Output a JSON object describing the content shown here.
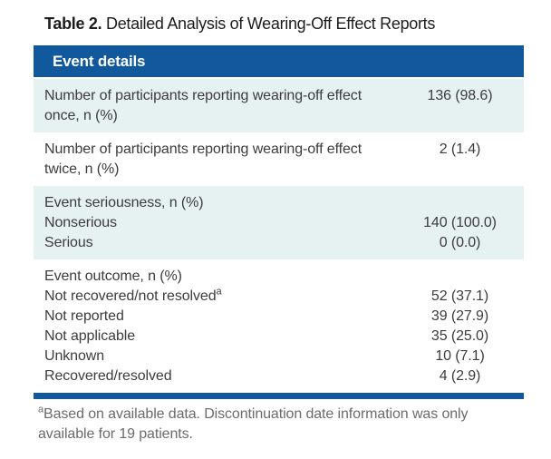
{
  "colors": {
    "header_blue": "#11599c",
    "row_light_bg": "#e5f2f1"
  },
  "title": {
    "label": "Table 2.",
    "text": "Detailed Analysis of Wearing-Off Effect Reports"
  },
  "table": {
    "header": "Event details",
    "sections": [
      {
        "shade": "light",
        "rows": [
          {
            "label_line1": "Number of participants reporting wearing-off effect",
            "label_line2": "once, n (%)",
            "value": "136 (98.6)"
          }
        ]
      },
      {
        "shade": "white",
        "rows": [
          {
            "label_line1": "Number of participants reporting wearing-off effect",
            "label_line2": "twice, n (%)",
            "value": "2 (1.4)"
          }
        ]
      },
      {
        "shade": "light",
        "rows": [
          {
            "label": "Event seriousness, n (%)",
            "value": ""
          },
          {
            "label": "Nonserious",
            "value": "140 (100.0)"
          },
          {
            "label": "Serious",
            "value": "0 (0.0)"
          }
        ]
      },
      {
        "shade": "white",
        "rows": [
          {
            "label": "Event outcome, n (%)",
            "value": ""
          },
          {
            "label": "Not recovered/not resolved",
            "sup": "a",
            "value": "52 (37.1)"
          },
          {
            "label": "Not reported",
            "value": "39 (27.9)"
          },
          {
            "label": "Not applicable",
            "value": "35 (25.0)"
          },
          {
            "label": "Unknown",
            "value": "10 (7.1)"
          },
          {
            "label": "Recovered/resolved",
            "value": "4 (2.9)"
          }
        ]
      }
    ]
  },
  "footnote": {
    "marker": "a",
    "line1": "Based on available data. Discontinuation date information was only",
    "line2": "available for 19 patients."
  },
  "chart_data": {
    "type": "table",
    "title": "Table 2. Detailed Analysis of Wearing-Off Effect Reports",
    "columns": [
      "Event details",
      "n (%)"
    ],
    "rows": [
      [
        "Number of participants reporting wearing-off effect once, n (%)",
        "136 (98.6)"
      ],
      [
        "Number of participants reporting wearing-off effect twice, n (%)",
        "2 (1.4)"
      ],
      [
        "Event seriousness: Nonserious",
        "140 (100.0)"
      ],
      [
        "Event seriousness: Serious",
        "0 (0.0)"
      ],
      [
        "Event outcome: Not recovered/not resolved(a)",
        "52 (37.1)"
      ],
      [
        "Event outcome: Not reported",
        "39 (27.9)"
      ],
      [
        "Event outcome: Not applicable",
        "35 (25.0)"
      ],
      [
        "Event outcome: Unknown",
        "10 (7.1)"
      ],
      [
        "Event outcome: Recovered/resolved",
        "4 (2.9)"
      ]
    ],
    "footnote": "aBased on available data. Discontinuation date information was only available for 19 patients."
  }
}
